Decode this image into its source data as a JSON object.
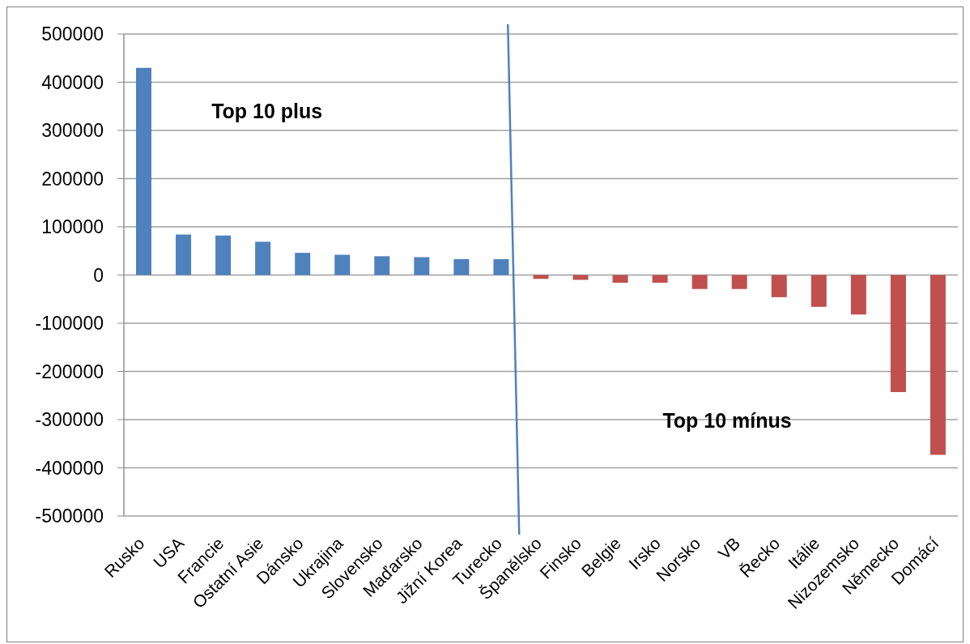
{
  "chart_data": {
    "type": "bar",
    "categories": [
      "Rusko",
      "USA",
      "Francie",
      "Ostatní Asie",
      "Dánsko",
      "Ukrajina",
      "Slovensko",
      "Maďarsko",
      "Jižní Korea",
      "Turecko",
      "Španělsko",
      "Finsko",
      "Belgie",
      "Irsko",
      "Norsko",
      "VB",
      "Řecko",
      "Itálie",
      "Nizozemsko",
      "Německo",
      "Domácí"
    ],
    "values": [
      430000,
      84000,
      82000,
      69000,
      46000,
      42000,
      39000,
      37000,
      33000,
      33000,
      -8000,
      -10000,
      -16000,
      -16000,
      -29000,
      -29000,
      -46000,
      -66000,
      -82000,
      -243000,
      -373000
    ],
    "colors": [
      "#4f81bd",
      "#4f81bd",
      "#4f81bd",
      "#4f81bd",
      "#4f81bd",
      "#4f81bd",
      "#4f81bd",
      "#4f81bd",
      "#4f81bd",
      "#4f81bd",
      "#c0504d",
      "#c0504d",
      "#c0504d",
      "#c0504d",
      "#c0504d",
      "#c0504d",
      "#c0504d",
      "#c0504d",
      "#c0504d",
      "#c0504d",
      "#c0504d"
    ],
    "ylim": [
      -500000,
      500000
    ],
    "yticks": [
      -500000,
      -400000,
      -300000,
      -200000,
      -100000,
      0,
      100000,
      200000,
      300000,
      400000,
      500000
    ],
    "grid": "y",
    "annotations": [
      "Top 10 plus",
      "Top 10 mínus"
    ]
  }
}
